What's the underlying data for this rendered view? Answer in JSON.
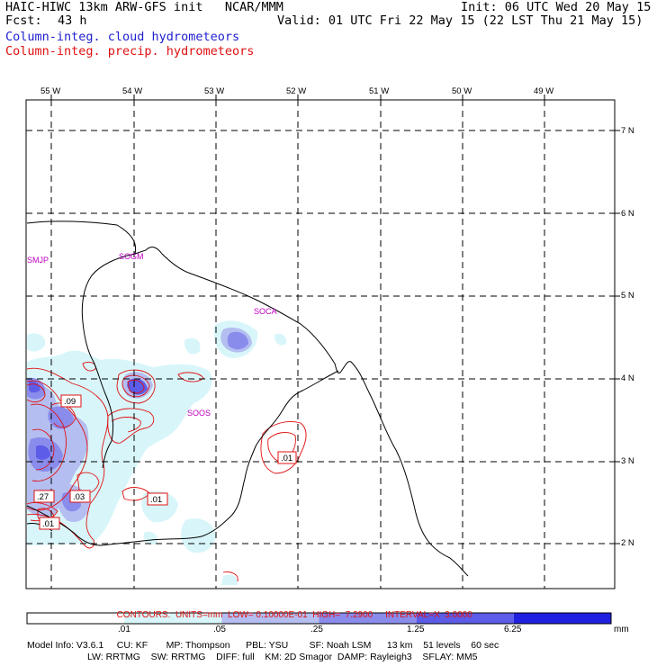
{
  "header": {
    "title": "HAIC-HIWC 13km ARW-GFS init   NCAR/MMM",
    "init": "Init: 06 UTC Wed 20 May 15",
    "fcst_label": "Fcst:",
    "fcst_value": "43 h",
    "valid": "Valid: 01 UTC Fri 22 May 15 (22 LST Thu 21 May 15)",
    "field1": "Column-integ. cloud hydrometeors",
    "field2": "Column-integ. precip. hydrometeors"
  },
  "map": {
    "lon_labels": [
      "55 W",
      "54 W",
      "53 W",
      "52 W",
      "51 W",
      "50 W",
      "49 W"
    ],
    "lat_labels": [
      "7 N",
      "6 N",
      "5 N",
      "4 N",
      "3 N",
      "2 N"
    ],
    "stations": [
      {
        "id": "SMJP"
      },
      {
        "id": "SOGM"
      },
      {
        "id": "SOCA"
      },
      {
        "id": "SOOS"
      }
    ],
    "contour_labels": [
      ".09",
      ".01",
      ".27",
      ".03",
      ".01",
      ".01"
    ]
  },
  "contours_line": {
    "label": "CONTOURS:",
    "units": "UNITS=mm",
    "low": "LOW= 0.10000E-01",
    "high": "HIGH=  7.2900",
    "interval": "INTERVAL=X  3.0000"
  },
  "colorbar": {
    "unit": "mm",
    "ticks": [
      ".01",
      ".05",
      ".25",
      "1.25",
      "6.25"
    ],
    "colors": [
      "#ffffff",
      "#d8f6fa",
      "#b4bef0",
      "#8a8cec",
      "#5c5ce8",
      "#2020e0"
    ]
  },
  "model_info": {
    "line1": "Model Info: V3.6.1     CU: KF       MP: Thompson      PBL: YSU        SF: Noah LSM      13 km    51 levels    60 sec",
    "line2": "LW: RRTMG    SW: RRTMG    DIFF: full    KM: 2D Smagor  DAMP: Rayleigh3    SFLAY: MM5"
  }
}
